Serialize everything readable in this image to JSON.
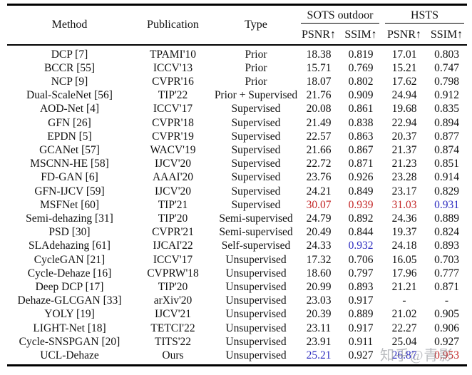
{
  "watermark": {
    "text": "知乎@青影",
    "color": "#8c9096"
  },
  "colors": {
    "best": "#c32525",
    "second": "#2b2bbf",
    "text": "#111111"
  },
  "table": {
    "columns": {
      "method": "Method",
      "publication": "Publication",
      "type": "Type"
    },
    "groups": {
      "sots": "SOTS outdoor",
      "hsts": "HSTS"
    },
    "metric_headers": [
      "PSNR↑",
      "SSIM↑",
      "PSNR↑",
      "SSIM↑"
    ],
    "rows": [
      {
        "method": "DCP [7]",
        "publication": "TPAMI'10",
        "type": "Prior",
        "values": [
          "18.38",
          "0.819",
          "17.01",
          "0.803"
        ],
        "value_colors": [
          null,
          null,
          null,
          null
        ]
      },
      {
        "method": "BCCR [55]",
        "publication": "ICCV'13",
        "type": "Prior",
        "values": [
          "15.71",
          "0.769",
          "15.21",
          "0.747"
        ],
        "value_colors": [
          null,
          null,
          null,
          null
        ]
      },
      {
        "method": "NCP [9]",
        "publication": "CVPR'16",
        "type": "Prior",
        "values": [
          "18.07",
          "0.802",
          "17.62",
          "0.798"
        ],
        "value_colors": [
          null,
          null,
          null,
          null
        ]
      },
      {
        "method": "Dual-ScaleNet [56]",
        "publication": "TIP'22",
        "type": "Prior + Supervised",
        "values": [
          "21.76",
          "0.909",
          "24.94",
          "0.912"
        ],
        "value_colors": [
          null,
          null,
          null,
          null
        ]
      },
      {
        "method": "AOD-Net [4]",
        "publication": "ICCV'17",
        "type": "Supervised",
        "values": [
          "20.08",
          "0.861",
          "19.68",
          "0.835"
        ],
        "value_colors": [
          null,
          null,
          null,
          null
        ]
      },
      {
        "method": "GFN [26]",
        "publication": "CVPR'18",
        "type": "Supervised",
        "values": [
          "21.49",
          "0.838",
          "22.94",
          "0.894"
        ],
        "value_colors": [
          null,
          null,
          null,
          null
        ]
      },
      {
        "method": "EPDN [5]",
        "publication": "CVPR'19",
        "type": "Supervised",
        "values": [
          "22.57",
          "0.863",
          "20.37",
          "0.877"
        ],
        "value_colors": [
          null,
          null,
          null,
          null
        ]
      },
      {
        "method": "GCANet [57]",
        "publication": "WACV'19",
        "type": "Supervised",
        "values": [
          "21.66",
          "0.867",
          "21.37",
          "0.874"
        ],
        "value_colors": [
          null,
          null,
          null,
          null
        ]
      },
      {
        "method": "MSCNN-HE [58]",
        "publication": "IJCV'20",
        "type": "Supervised",
        "values": [
          "22.72",
          "0.871",
          "21.23",
          "0.851"
        ],
        "value_colors": [
          null,
          null,
          null,
          null
        ]
      },
      {
        "method": "FD-GAN [6]",
        "publication": "AAAI'20",
        "type": "Supervised",
        "values": [
          "23.76",
          "0.926",
          "23.28",
          "0.914"
        ],
        "value_colors": [
          null,
          null,
          null,
          null
        ]
      },
      {
        "method": "GFN-IJCV [59]",
        "publication": "IJCV'20",
        "type": "Supervised",
        "values": [
          "24.21",
          "0.849",
          "23.17",
          "0.829"
        ],
        "value_colors": [
          null,
          null,
          null,
          null
        ]
      },
      {
        "method": "MSFNet [60]",
        "publication": "TIP'21",
        "type": "Supervised",
        "values": [
          "30.07",
          "0.939",
          "31.03",
          "0.931"
        ],
        "value_colors": [
          "best",
          "best",
          "best",
          "second"
        ]
      },
      {
        "method": "Semi-dehazing [31]",
        "publication": "TIP'20",
        "type": "Semi-supervised",
        "values": [
          "24.79",
          "0.892",
          "24.36",
          "0.889"
        ],
        "value_colors": [
          null,
          null,
          null,
          null
        ]
      },
      {
        "method": "PSD [30]",
        "publication": "CVPR'21",
        "type": "Semi-supervised",
        "values": [
          "20.49",
          "0.844",
          "19.37",
          "0.824"
        ],
        "value_colors": [
          null,
          null,
          null,
          null
        ]
      },
      {
        "method": "SLAdehazing [61]",
        "publication": "IJCAI'22",
        "type": "Self-supervised",
        "values": [
          "24.33",
          "0.932",
          "24.18",
          "0.893"
        ],
        "value_colors": [
          null,
          "second",
          null,
          null
        ]
      },
      {
        "method": "CycleGAN [21]",
        "publication": "ICCV'17",
        "type": "Unsupervised",
        "values": [
          "17.32",
          "0.706",
          "16.05",
          "0.703"
        ],
        "value_colors": [
          null,
          null,
          null,
          null
        ]
      },
      {
        "method": "Cycle-Dehaze [16]",
        "publication": "CVPRW'18",
        "type": "Unsupervised",
        "values": [
          "18.60",
          "0.797",
          "17.96",
          "0.777"
        ],
        "value_colors": [
          null,
          null,
          null,
          null
        ]
      },
      {
        "method": "Deep DCP [17]",
        "publication": "TIP'20",
        "type": "Unsupervised",
        "values": [
          "20.99",
          "0.893",
          "21.21",
          "0.871"
        ],
        "value_colors": [
          null,
          null,
          null,
          null
        ]
      },
      {
        "method": "Dehaze-GLCGAN [33]",
        "publication": "arXiv'20",
        "type": "Unsupervised",
        "values": [
          "23.03",
          "0.917",
          "-",
          "-"
        ],
        "value_colors": [
          null,
          null,
          null,
          null
        ]
      },
      {
        "method": "YOLY [19]",
        "publication": "IJCV'21",
        "type": "Unsupervised",
        "values": [
          "20.39",
          "0.889",
          "21.02",
          "0.905"
        ],
        "value_colors": [
          null,
          null,
          null,
          null
        ]
      },
      {
        "method": "LIGHT-Net [18]",
        "publication": "TETCI'22",
        "type": "Unsupervised",
        "values": [
          "23.11",
          "0.917",
          "22.27",
          "0.906"
        ],
        "value_colors": [
          null,
          null,
          null,
          null
        ]
      },
      {
        "method": "Cycle-SNSPGAN [20]",
        "publication": "TITS'22",
        "type": "Unsupervised",
        "values": [
          "23.91",
          "0.911",
          "25.04",
          "0.927"
        ],
        "value_colors": [
          null,
          null,
          null,
          null
        ]
      },
      {
        "method": "UCL-Dehaze",
        "publication": "Ours",
        "type": "Unsupervised",
        "values": [
          "25.21",
          "0.927",
          "26.87",
          "0.953"
        ],
        "value_colors": [
          "second",
          null,
          "second",
          "best"
        ]
      }
    ]
  }
}
